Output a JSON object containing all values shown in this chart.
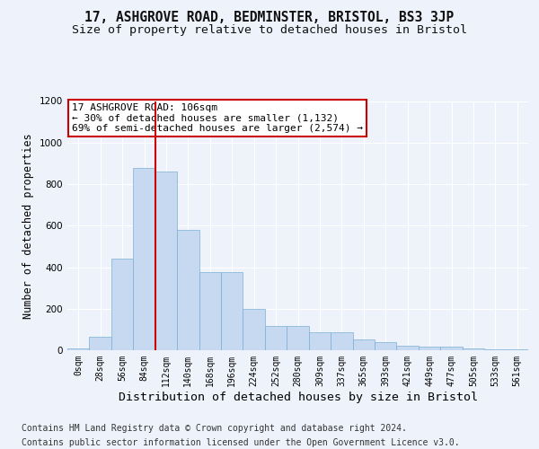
{
  "title1": "17, ASHGROVE ROAD, BEDMINSTER, BRISTOL, BS3 3JP",
  "title2": "Size of property relative to detached houses in Bristol",
  "xlabel": "Distribution of detached houses by size in Bristol",
  "ylabel": "Number of detached properties",
  "bar_labels": [
    "0sqm",
    "28sqm",
    "56sqm",
    "84sqm",
    "112sqm",
    "140sqm",
    "168sqm",
    "196sqm",
    "224sqm",
    "252sqm",
    "280sqm",
    "309sqm",
    "337sqm",
    "365sqm",
    "393sqm",
    "421sqm",
    "449sqm",
    "477sqm",
    "505sqm",
    "533sqm",
    "561sqm"
  ],
  "bar_values": [
    10,
    65,
    440,
    880,
    860,
    580,
    375,
    375,
    200,
    115,
    115,
    85,
    85,
    50,
    40,
    22,
    18,
    18,
    10,
    3,
    3
  ],
  "bar_color": "#c6d9f0",
  "bar_edge_color": "#7bafd4",
  "vline_x_idx": 4,
  "vline_color": "#cc0000",
  "ylim": [
    0,
    1200
  ],
  "annotation_text": "17 ASHGROVE ROAD: 106sqm\n← 30% of detached houses are smaller (1,132)\n69% of semi-detached houses are larger (2,574) →",
  "annotation_box_color": "#ffffff",
  "annotation_box_edge": "#cc0000",
  "footer1": "Contains HM Land Registry data © Crown copyright and database right 2024.",
  "footer2": "Contains public sector information licensed under the Open Government Licence v3.0.",
  "bg_color": "#eef2fb",
  "plot_bg_color": "#eef2fb",
  "title1_fontsize": 10.5,
  "title2_fontsize": 9.5,
  "xlabel_fontsize": 9.5,
  "ylabel_fontsize": 8.5,
  "tick_fontsize": 7.0,
  "annotation_fontsize": 8.0,
  "footer_fontsize": 7.0
}
